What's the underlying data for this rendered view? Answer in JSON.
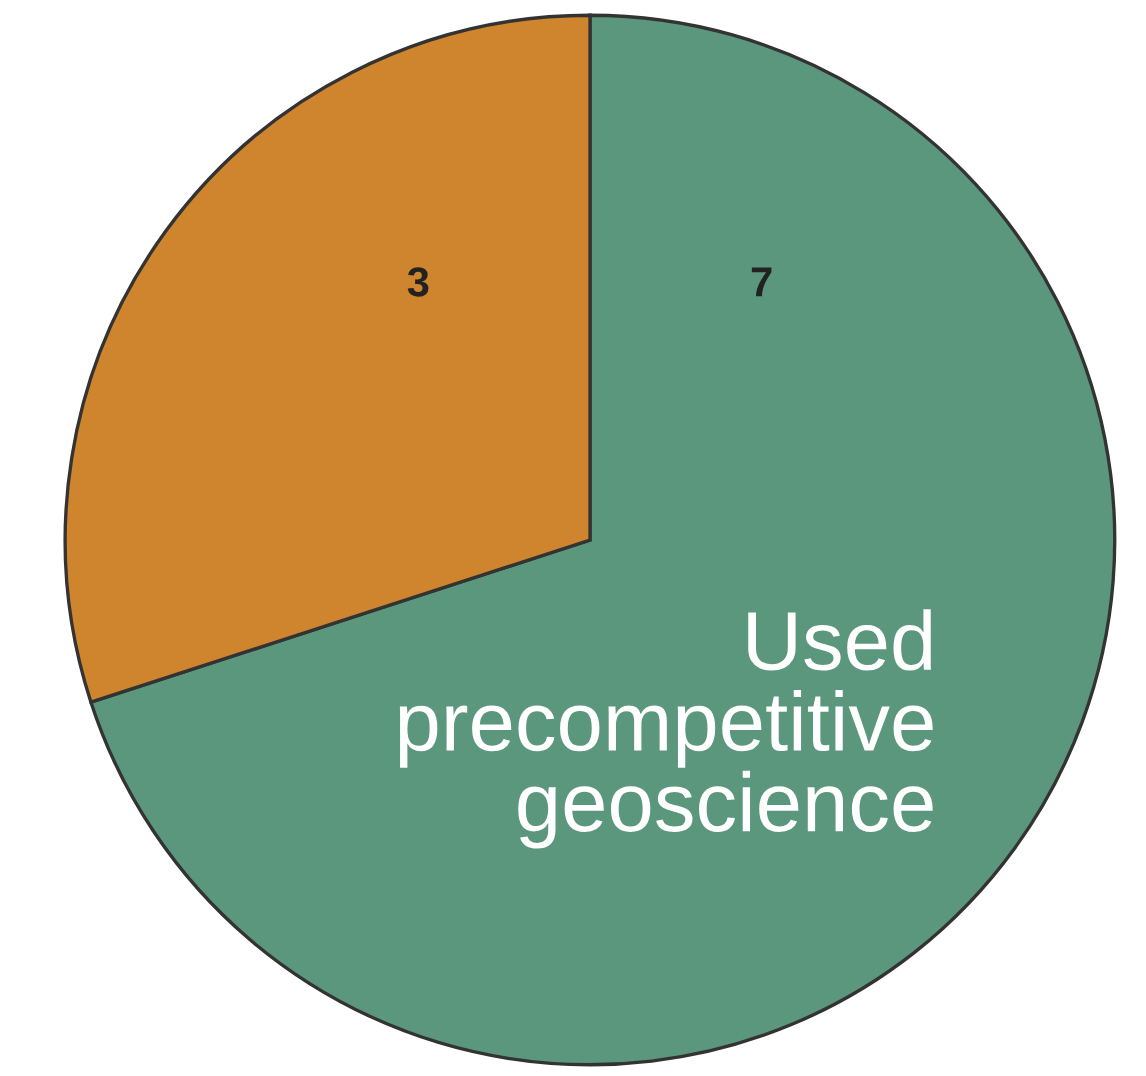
{
  "chart_data": {
    "type": "pie",
    "categories": [
      "Used precompetitive geoscience",
      null
    ],
    "values": [
      7,
      3
    ],
    "colors": [
      "#5a977c",
      "#cf852d"
    ],
    "data_labels": true,
    "legend": false
  }
}
